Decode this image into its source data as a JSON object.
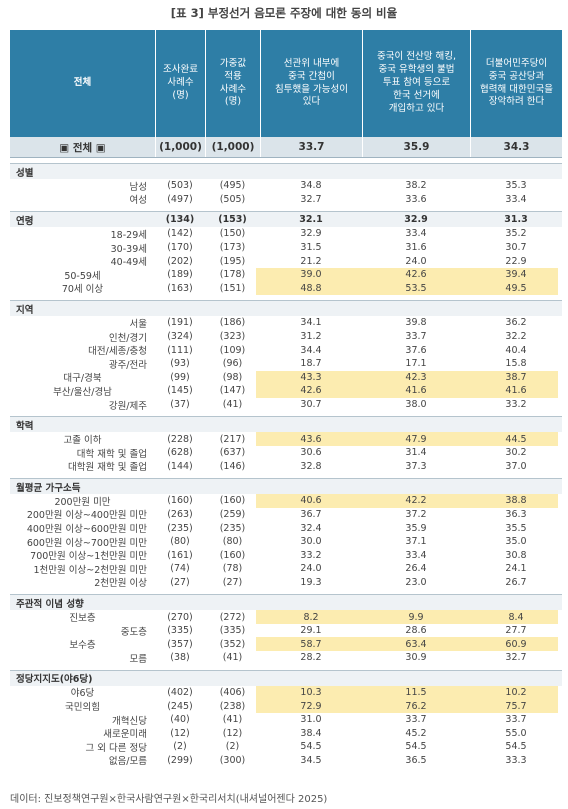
{
  "title": "[표 3] 부정선거 음모론 주장에 대한 동의 비율",
  "header": [
    "전체",
    "조사완료\n사례수\n(명)",
    "가중값\n적용\n사례수\n(명)",
    "선관위 내부에\n중국 간첩이\n침투했을 가능성이\n있다",
    "중국이 전산망 해킹,\n중국 유학생의 불법\n투표 참여 등으로\n한국 선거에\n개입하고 있다",
    "더불어민주당이\n중국 공산당과\n협력해 대한민국을\n장악하려 한다"
  ],
  "total": [
    "▣ 전체 ▣",
    "(1,000)",
    "(1,000)",
    "33.7",
    "35.9",
    "34.3"
  ],
  "groups": [
    {
      "label": "성별",
      "rows": [
        {
          "cells": [
            "남성",
            "(503)",
            "(495)",
            "34.8",
            "38.2",
            "35.3"
          ]
        },
        {
          "cells": [
            "여성",
            "(497)",
            "(505)",
            "32.7",
            "33.6",
            "33.4"
          ]
        }
      ]
    },
    {
      "label": "연령",
      "cells": [
        "(134)",
        "(153)",
        "32.1",
        "32.9",
        "31.3"
      ],
      "rows": [
        {
          "cells": [
            "18-29세",
            "(142)",
            "(150)",
            "32.9",
            "33.4",
            "35.2"
          ]
        },
        {
          "cells": [
            "30-39세",
            "(170)",
            "(173)",
            "31.5",
            "31.6",
            "30.7"
          ]
        },
        {
          "cells": [
            "40-49세",
            "(202)",
            "(195)",
            "21.2",
            "24.0",
            "22.9"
          ]
        },
        {
          "cells": [
            "50-59세",
            "(189)",
            "(178)",
            "39.0",
            "42.6",
            "39.4"
          ],
          "highlight": true
        },
        {
          "cells": [
            "70세 이상",
            "(163)",
            "(151)",
            "48.8",
            "53.5",
            "49.5"
          ],
          "highlight": true
        }
      ]
    },
    {
      "label": "지역",
      "rows": [
        {
          "cells": [
            "서울",
            "(191)",
            "(186)",
            "34.1",
            "39.8",
            "36.2"
          ]
        },
        {
          "cells": [
            "인천/경기",
            "(324)",
            "(323)",
            "31.2",
            "33.7",
            "32.2"
          ]
        },
        {
          "cells": [
            "대전/세종/충청",
            "(111)",
            "(109)",
            "34.4",
            "37.6",
            "40.4"
          ]
        },
        {
          "cells": [
            "광주/전라",
            "(93)",
            "(96)",
            "18.7",
            "17.1",
            "15.8"
          ]
        },
        {
          "cells": [
            "대구/경북",
            "(99)",
            "(98)",
            "43.3",
            "42.3",
            "38.7"
          ],
          "highlight": true
        },
        {
          "cells": [
            "부산/울산/경남",
            "(145)",
            "(147)",
            "42.6",
            "41.6",
            "41.6"
          ],
          "highlight": true
        },
        {
          "cells": [
            "강원/제주",
            "(37)",
            "(41)",
            "30.7",
            "38.0",
            "33.2"
          ]
        }
      ]
    },
    {
      "label": "학력",
      "rows": [
        {
          "cells": [
            "고졸 이하",
            "(228)",
            "(217)",
            "43.6",
            "47.9",
            "44.5"
          ],
          "highlight": true
        },
        {
          "cells": [
            "대학 재학 및 졸업",
            "(628)",
            "(637)",
            "30.6",
            "31.4",
            "30.2"
          ]
        },
        {
          "cells": [
            "대학원 재학 및 졸업",
            "(144)",
            "(146)",
            "32.8",
            "37.3",
            "37.0"
          ]
        }
      ]
    },
    {
      "label": "월평균 가구소득",
      "rows": [
        {
          "cells": [
            "200만원 미만",
            "(160)",
            "(160)",
            "40.6",
            "42.2",
            "38.8"
          ],
          "highlight": true
        },
        {
          "cells": [
            "200만원 이상~400만원 미만",
            "(263)",
            "(259)",
            "36.7",
            "37.2",
            "36.3"
          ]
        },
        {
          "cells": [
            "400만원 이상~600만원 미만",
            "(235)",
            "(235)",
            "32.4",
            "35.9",
            "35.5"
          ]
        },
        {
          "cells": [
            "600만원 이상~700만원 미만",
            "(80)",
            "(80)",
            "30.0",
            "37.1",
            "35.0"
          ]
        },
        {
          "cells": [
            "700만원 이상~1천만원 미만",
            "(161)",
            "(160)",
            "33.2",
            "33.4",
            "30.8"
          ]
        },
        {
          "cells": [
            "1천만원 이상~2천만원 미만",
            "(74)",
            "(78)",
            "24.0",
            "26.4",
            "24.1"
          ]
        },
        {
          "cells": [
            "2천만원 이상",
            "(27)",
            "(27)",
            "19.3",
            "23.0",
            "26.7"
          ]
        }
      ]
    },
    {
      "label": "주관적 이념 성향",
      "rows": [
        {
          "cells": [
            "진보층",
            "(270)",
            "(272)",
            "8.2",
            "9.9",
            "8.4"
          ],
          "highlight": true
        },
        {
          "cells": [
            "중도층",
            "(335)",
            "(335)",
            "29.1",
            "28.6",
            "27.7"
          ]
        },
        {
          "cells": [
            "보수층",
            "(357)",
            "(352)",
            "58.7",
            "63.4",
            "60.9"
          ],
          "highlight": true
        },
        {
          "cells": [
            "모름",
            "(38)",
            "(41)",
            "28.2",
            "30.9",
            "32.7"
          ]
        }
      ]
    },
    {
      "label": "정당지지도(야6당)",
      "rows": [
        {
          "cells": [
            "야6당",
            "(402)",
            "(406)",
            "10.3",
            "11.5",
            "10.2"
          ],
          "highlight": true
        },
        {
          "cells": [
            "국민의힘",
            "(245)",
            "(238)",
            "72.9",
            "76.2",
            "75.7"
          ],
          "highlight": true
        },
        {
          "cells": [
            "개혁신당",
            "(40)",
            "(41)",
            "31.0",
            "33.7",
            "33.7"
          ]
        },
        {
          "cells": [
            "새로운미래",
            "(12)",
            "(12)",
            "38.4",
            "45.2",
            "55.0"
          ]
        },
        {
          "cells": [
            "그 외 다른 정당",
            "(2)",
            "(2)",
            "54.5",
            "54.5",
            "54.5"
          ]
        },
        {
          "cells": [
            "없음/모름",
            "(299)",
            "(300)",
            "34.5",
            "36.5",
            "33.3"
          ]
        }
      ]
    }
  ],
  "source": "데이터: 진보정책연구원×한국사람연구원×한국리서치(내셔널어젠다 2025)"
}
